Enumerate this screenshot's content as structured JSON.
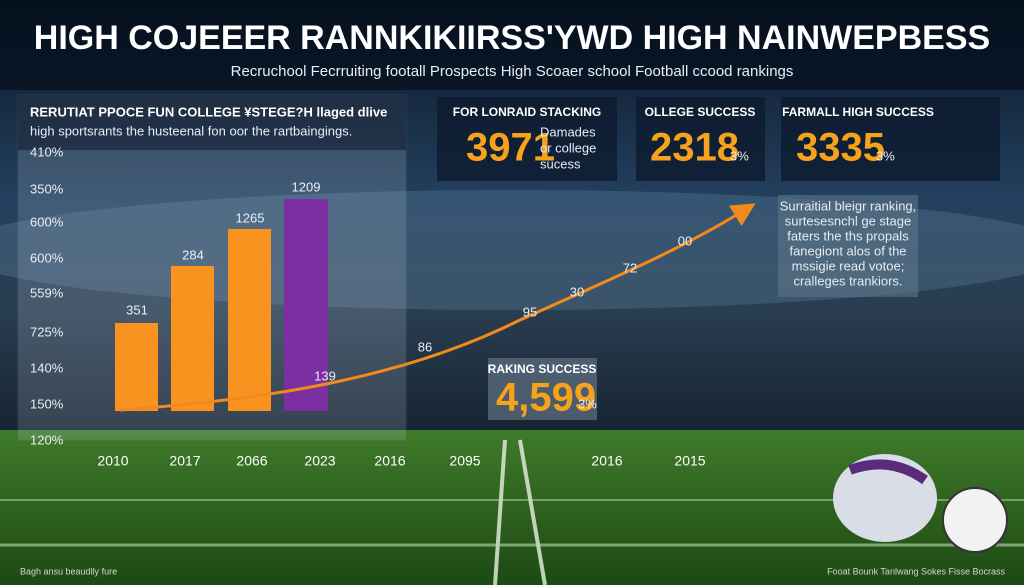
{
  "header": {
    "title": "HIGH COJEEER RANNKIKIIRSS'YWD HIGH NAINWEPBESS",
    "subtitle": "Recruchool Fecrruiting footall Prospects High Scoaer school  Football ccood rankings"
  },
  "panel": {
    "heading": "RERUTIAT PPOCE FUN COLLEGE ¥STEGE?H llaged dlive",
    "text": "high sportsrants the husteenal fon oor the rartbaingings.",
    "y_labels": [
      "410%",
      "350%",
      "600%",
      "600%",
      "559%",
      "725%",
      "140%",
      "150%",
      "120%"
    ],
    "bar_labels": [
      "351",
      "284",
      "1265",
      "1209",
      "139"
    ]
  },
  "x_labels": [
    "2010",
    "2017",
    "2066",
    "2023",
    "2016",
    "2095",
    "2016",
    "2015"
  ],
  "stats": [
    {
      "title": "FOR LONRAID STACKING",
      "value": "3971",
      "note": [
        "Damades",
        "or college",
        "sucess"
      ]
    },
    {
      "title": "OLLEGE SUCCESS",
      "value": "2318",
      "note": [
        "3%"
      ]
    },
    {
      "title": "FARMALL HIGH SUCCESS",
      "value": "3335",
      "note": [
        "3%"
      ]
    }
  ],
  "trend_labels": [
    "00",
    "72",
    "30",
    "95",
    "86"
  ],
  "side_note": [
    "Surraitial bleigr ranking,",
    "surtesesnchl ge stage",
    "faters the ths propals",
    "fanegiont alos of the",
    "mssigie read votoe;",
    "cralleges trankiors."
  ],
  "ranking": {
    "title": "RAKING SUCCESS",
    "value": "4,599",
    "note": "3%"
  },
  "footer": {
    "left": "Bagh ansu beaudlly fure",
    "right": "Fooat Bounk Tanlwang Sokes Fisse Bocrass"
  }
}
